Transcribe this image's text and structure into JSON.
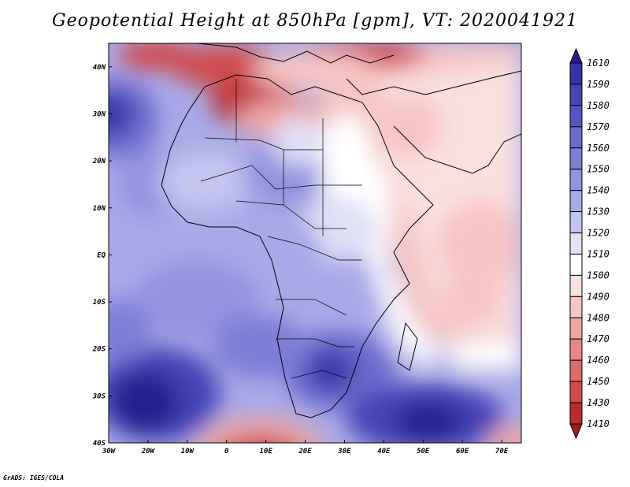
{
  "title": "Geopotential Height at 850hPa [gpm], VT: 2020041921",
  "footer": "GrADS: IGES/COLA",
  "map": {
    "lon_range": [
      -30,
      75
    ],
    "lat_range": [
      -40,
      45
    ],
    "x_ticks": [
      "30W",
      "20W",
      "10W",
      "0",
      "10E",
      "20E",
      "30E",
      "40E",
      "50E",
      "60E",
      "70E"
    ],
    "x_tick_values": [
      -30,
      -20,
      -10,
      0,
      10,
      20,
      30,
      40,
      50,
      60,
      70
    ],
    "y_ticks": [
      "40N",
      "30N",
      "20N",
      "10N",
      "EQ",
      "10S",
      "20S",
      "30S",
      "40S"
    ],
    "y_tick_values": [
      40,
      30,
      20,
      10,
      0,
      -10,
      -20,
      -30,
      -40
    ]
  },
  "colorbar": {
    "labels": [
      "1610",
      "1590",
      "1580",
      "1570",
      "1560",
      "1550",
      "1540",
      "1530",
      "1520",
      "1510",
      "1500",
      "1490",
      "1480",
      "1470",
      "1460",
      "1450",
      "1430",
      "1410"
    ],
    "colors": [
      "#26208f",
      "#3535a8",
      "#4545b8",
      "#5656c4",
      "#6a6acd",
      "#7e7ed7",
      "#9393df",
      "#a9a9e7",
      "#c4c4f0",
      "#e0e0f8",
      "#ffffff",
      "#fbe0e0",
      "#f6c4c4",
      "#f0a6a6",
      "#e88888",
      "#de6a6a",
      "#d04b4b",
      "#bb2c2c",
      "#a71b1b"
    ]
  }
}
